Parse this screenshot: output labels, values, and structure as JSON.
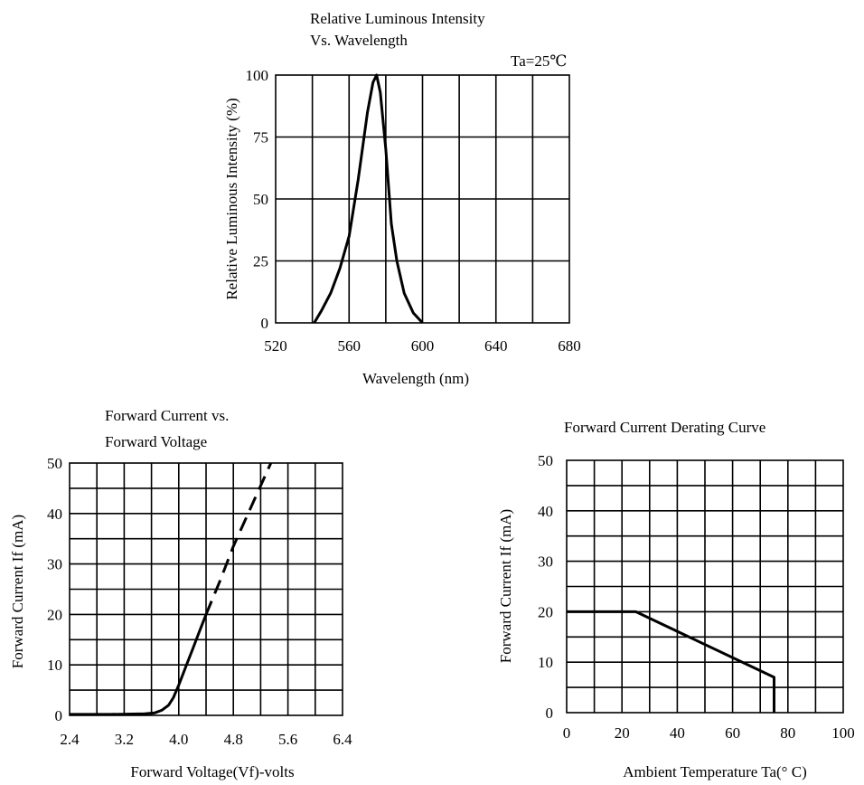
{
  "chart_data": [
    {
      "type": "line",
      "title_line1": "Relative Luminous Intensity",
      "title_line2": "Vs. Wavelength",
      "annotation": "Ta=25℃",
      "xlabel": "Wavelength (nm)",
      "ylabel": "Relative  Luminous  Intensity (%)",
      "xlim": [
        520,
        680
      ],
      "ylim": [
        0,
        100
      ],
      "xticks": [
        "520",
        "560",
        "600",
        "640",
        "680"
      ],
      "yticks": [
        "0",
        "25",
        "50",
        "75",
        "100"
      ],
      "grid": true,
      "x_divisions": 8,
      "y_divisions": 4,
      "series": [
        {
          "x": [
            541,
            545,
            550,
            555,
            560,
            565,
            570,
            573,
            575,
            577,
            580,
            583,
            586,
            590,
            595,
            600
          ],
          "y": [
            0,
            5,
            12,
            22,
            35,
            58,
            85,
            97,
            100,
            93,
            70,
            40,
            25,
            12,
            4,
            0
          ]
        }
      ]
    },
    {
      "type": "line",
      "title_line1": "Forward   Current   vs.",
      "title_line2": "Forward   Voltage",
      "xlabel": "Forward Voltage(Vf)-volts",
      "ylabel": "Forward   Current   If  (mA)",
      "xlim": [
        2.4,
        6.4
      ],
      "ylim": [
        0,
        50
      ],
      "xticks": [
        "2.4",
        "3.2",
        "4.0",
        "4.8",
        "5.6",
        "6.4"
      ],
      "yticks": [
        "0",
        "10",
        "20",
        "30",
        "40",
        "50"
      ],
      "grid": true,
      "x_divisions": 10,
      "y_divisions": 10,
      "series": [
        {
          "style": "solid",
          "x": [
            2.4,
            3.0,
            3.5,
            3.65,
            3.75,
            3.85,
            3.92,
            4.0,
            4.1,
            4.2,
            4.3,
            4.4
          ],
          "y": [
            0.2,
            0.2,
            0.3,
            0.5,
            1.0,
            2.0,
            3.5,
            6.0,
            9.5,
            13.0,
            16.5,
            20.0
          ]
        },
        {
          "style": "dashed",
          "x": [
            4.4,
            4.6,
            4.8,
            5.0,
            5.2,
            5.35
          ],
          "y": [
            20.0,
            26.5,
            33.5,
            39.5,
            45.5,
            50.0
          ]
        }
      ]
    },
    {
      "type": "line",
      "title_line1": "Forward  Current  Derating  Curve",
      "xlabel": "Ambient  Temperature  Ta(° C)",
      "ylabel": "Forward   Current   If  (mA)",
      "xlim": [
        0,
        100
      ],
      "ylim": [
        0,
        50
      ],
      "xticks": [
        "0",
        "20",
        "40",
        "60",
        "80",
        "100"
      ],
      "yticks": [
        "0",
        "10",
        "20",
        "30",
        "40",
        "50"
      ],
      "grid": true,
      "x_divisions": 10,
      "y_divisions": 10,
      "series": [
        {
          "x": [
            0,
            25,
            75,
            75
          ],
          "y": [
            20,
            20,
            7,
            0
          ]
        }
      ]
    }
  ]
}
